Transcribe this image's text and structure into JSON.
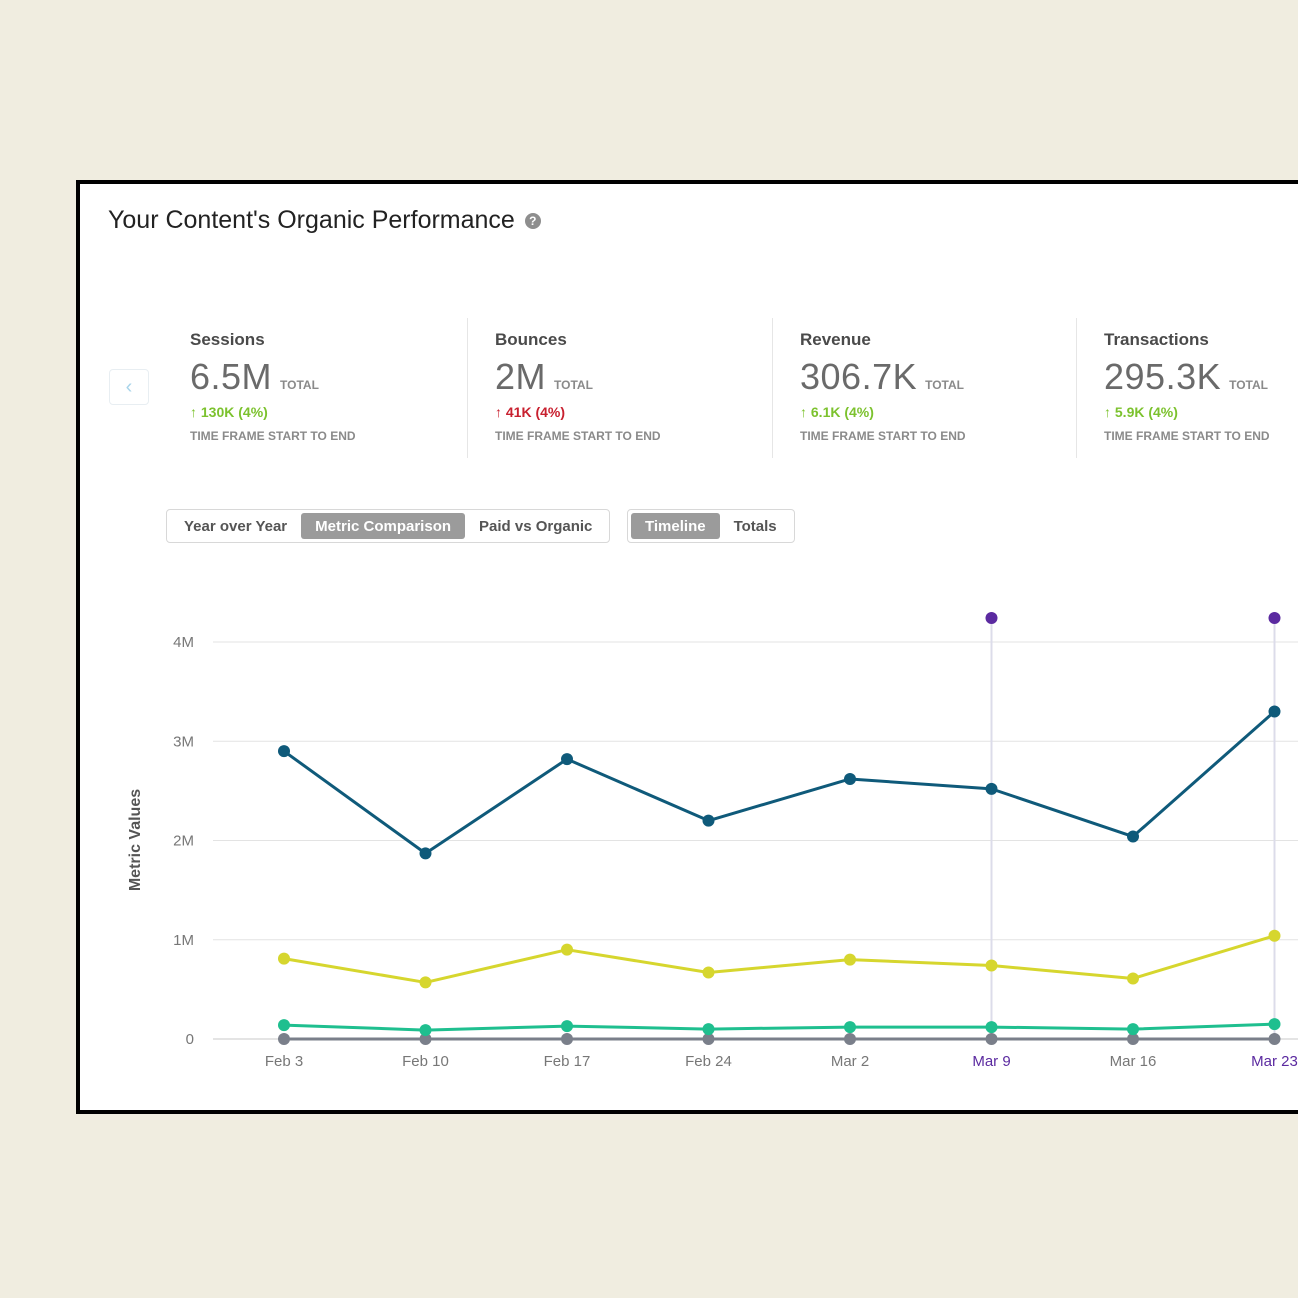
{
  "title": "Your Content's Organic Performance",
  "help_icon": "?",
  "nav_prev_icon": "‹",
  "metrics": [
    {
      "label": "Sessions",
      "value": "6.5M",
      "total": "TOTAL",
      "change": "130K (4%)",
      "direction": "up",
      "color": "#7cc22e",
      "sub": "TIME FRAME START TO END"
    },
    {
      "label": "Bounces",
      "value": "2M",
      "total": "TOTAL",
      "change": "41K (4%)",
      "direction": "up",
      "color": "#c8202f",
      "sub": "TIME FRAME START TO END"
    },
    {
      "label": "Revenue",
      "value": "306.7K",
      "total": "TOTAL",
      "change": "6.1K (4%)",
      "direction": "up",
      "color": "#7cc22e",
      "sub": "TIME FRAME START TO END"
    },
    {
      "label": "Transactions",
      "value": "295.3K",
      "total": "TOTAL",
      "change": "5.9K (4%)",
      "direction": "up",
      "color": "#7cc22e",
      "sub": "TIME FRAME START TO END"
    }
  ],
  "comparison_tabs": [
    "Year over Year",
    "Metric Comparison",
    "Paid vs Organic"
  ],
  "comparison_active": "Metric Comparison",
  "view_tabs": [
    "Timeline",
    "Totals"
  ],
  "view_active": "Timeline",
  "arrow_up": "↑",
  "chart_data": {
    "type": "line",
    "ylabel": "Metric Values",
    "xlabel": "",
    "ylim": [
      0,
      4000000
    ],
    "yticks": [
      0,
      1000000,
      2000000,
      3000000,
      4000000
    ],
    "ytick_labels": [
      "0",
      "1M",
      "2M",
      "3M",
      "4M"
    ],
    "categories": [
      "Feb 3",
      "Feb 10",
      "Feb 17",
      "Feb 24",
      "Mar 2",
      "Mar 9",
      "Mar 16",
      "Mar 23"
    ],
    "highlight_categories": [
      "Mar 9",
      "Mar 23"
    ],
    "highlight_color": "#5b2aa0",
    "series": [
      {
        "name": "Sessions",
        "color": "#0f5a7a",
        "values": [
          2900000,
          1870000,
          2820000,
          2200000,
          2620000,
          2520000,
          2040000,
          3300000
        ]
      },
      {
        "name": "Bounces",
        "color": "#d6d62e",
        "values": [
          810000,
          570000,
          900000,
          670000,
          800000,
          740000,
          610000,
          1040000
        ]
      },
      {
        "name": "Revenue",
        "color": "#1fbf8f",
        "values": [
          140000,
          90000,
          130000,
          100000,
          120000,
          120000,
          100000,
          150000
        ]
      },
      {
        "name": "Transactions",
        "color": "#7a7f8a",
        "values": [
          0,
          0,
          0,
          0,
          0,
          0,
          0,
          0
        ]
      }
    ]
  }
}
